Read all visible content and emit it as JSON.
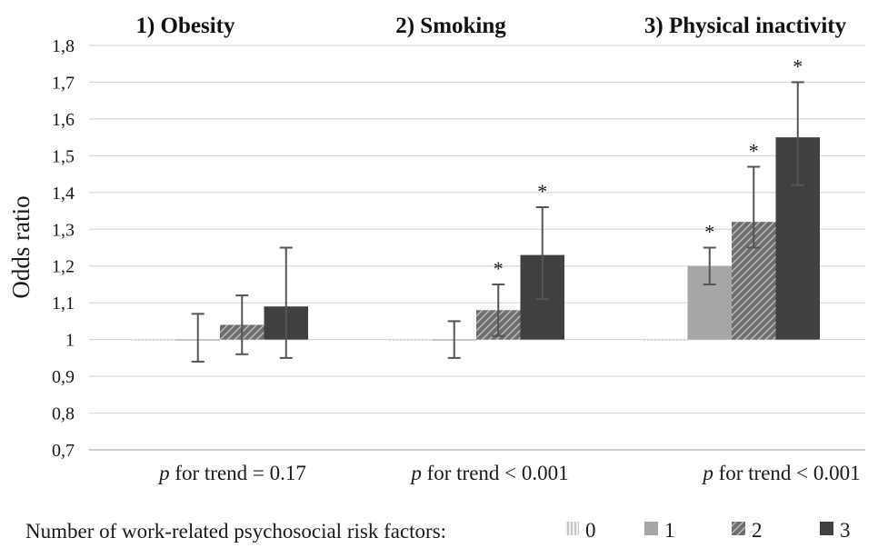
{
  "chart_data": {
    "type": "bar",
    "ylabel": "Odds ratio",
    "ylim": [
      0.7,
      1.8
    ],
    "yticks": [
      "0,7",
      "0,8",
      "0,9",
      "1",
      "1,1",
      "1,2",
      "1,3",
      "1,4",
      "1,5",
      "1,6",
      "1,7",
      "1,8"
    ],
    "ytick_values": [
      0.7,
      0.8,
      0.9,
      1.0,
      1.1,
      1.2,
      1.3,
      1.4,
      1.5,
      1.6,
      1.7,
      1.8
    ],
    "grid": true,
    "baseline": 1.0,
    "categories": [
      "1) Obesity",
      "2) Smoking",
      "3) Physical inactivity"
    ],
    "series": [
      {
        "name": "0",
        "values": [
          1.0,
          1.0,
          1.0
        ],
        "err_low": [
          null,
          null,
          null
        ],
        "err_high": [
          null,
          null,
          null
        ],
        "sig": [
          false,
          false,
          false
        ],
        "color": "#d9d9d9",
        "pattern": "vertical-stripes"
      },
      {
        "name": "1",
        "values": [
          1.0,
          1.0,
          1.2
        ],
        "err_low": [
          0.94,
          0.95,
          1.15
        ],
        "err_high": [
          1.07,
          1.05,
          1.25
        ],
        "sig": [
          false,
          false,
          true
        ],
        "color": "#a6a6a6",
        "pattern": "solid"
      },
      {
        "name": "2",
        "values": [
          1.04,
          1.08,
          1.32
        ],
        "err_low": [
          0.96,
          1.01,
          1.25
        ],
        "err_high": [
          1.12,
          1.15,
          1.47
        ],
        "sig": [
          false,
          true,
          true
        ],
        "color": "#6e6e6e",
        "pattern": "hatched"
      },
      {
        "name": "3",
        "values": [
          1.09,
          1.23,
          1.55
        ],
        "err_low": [
          0.95,
          1.11,
          1.42
        ],
        "err_high": [
          1.25,
          1.36,
          1.7
        ],
        "sig": [
          false,
          true,
          true
        ],
        "color": "#404040",
        "pattern": "solid"
      }
    ],
    "significance_marker": "*",
    "trend_notes": [
      {
        "p": "p",
        "rest": " for trend = 0.17"
      },
      {
        "p": "p",
        "rest": " for trend < 0.001"
      },
      {
        "p": "p",
        "rest": " for trend < 0.001"
      }
    ],
    "legend_title": "Number of work-related psychosocial risk factors:",
    "legend_position": "bottom"
  }
}
